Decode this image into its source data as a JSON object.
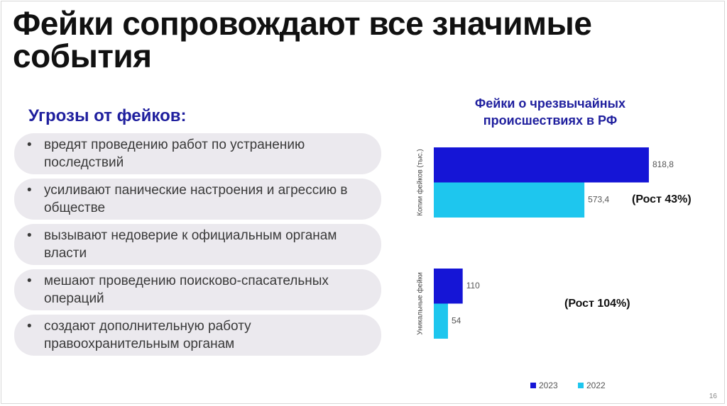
{
  "title": "Фейки сопровождают все значимые события",
  "threats": {
    "heading": "Угрозы от фейков:",
    "items": [
      "вредят проведению работ по устранению последствий",
      "усиливают панические настроения и агрессию в обществе",
      "вызывают недоверие к официальным органам власти",
      "мешают проведению поисково-спасательных операций",
      "создают дополнительную работу правоохранительным органам"
    ]
  },
  "chart_data": {
    "type": "bar",
    "orientation": "horizontal",
    "title": "Фейки о чрезвычайных происшествиях в РФ",
    "categories": [
      "Копии фейков (тыс.)",
      "Уникальные фейки"
    ],
    "series": [
      {
        "name": "2023",
        "color": "#1515d6",
        "values": [
          818.8,
          110
        ],
        "value_labels": [
          "818,8",
          "110"
        ]
      },
      {
        "name": "2022",
        "color": "#1ec6ee",
        "values": [
          573.4,
          54
        ],
        "value_labels": [
          "573,4",
          "54"
        ]
      }
    ],
    "annotations": [
      "(Рост 43%)",
      "(Рост 104%)"
    ],
    "xlim": [
      0,
      900
    ]
  },
  "page_number": "16"
}
